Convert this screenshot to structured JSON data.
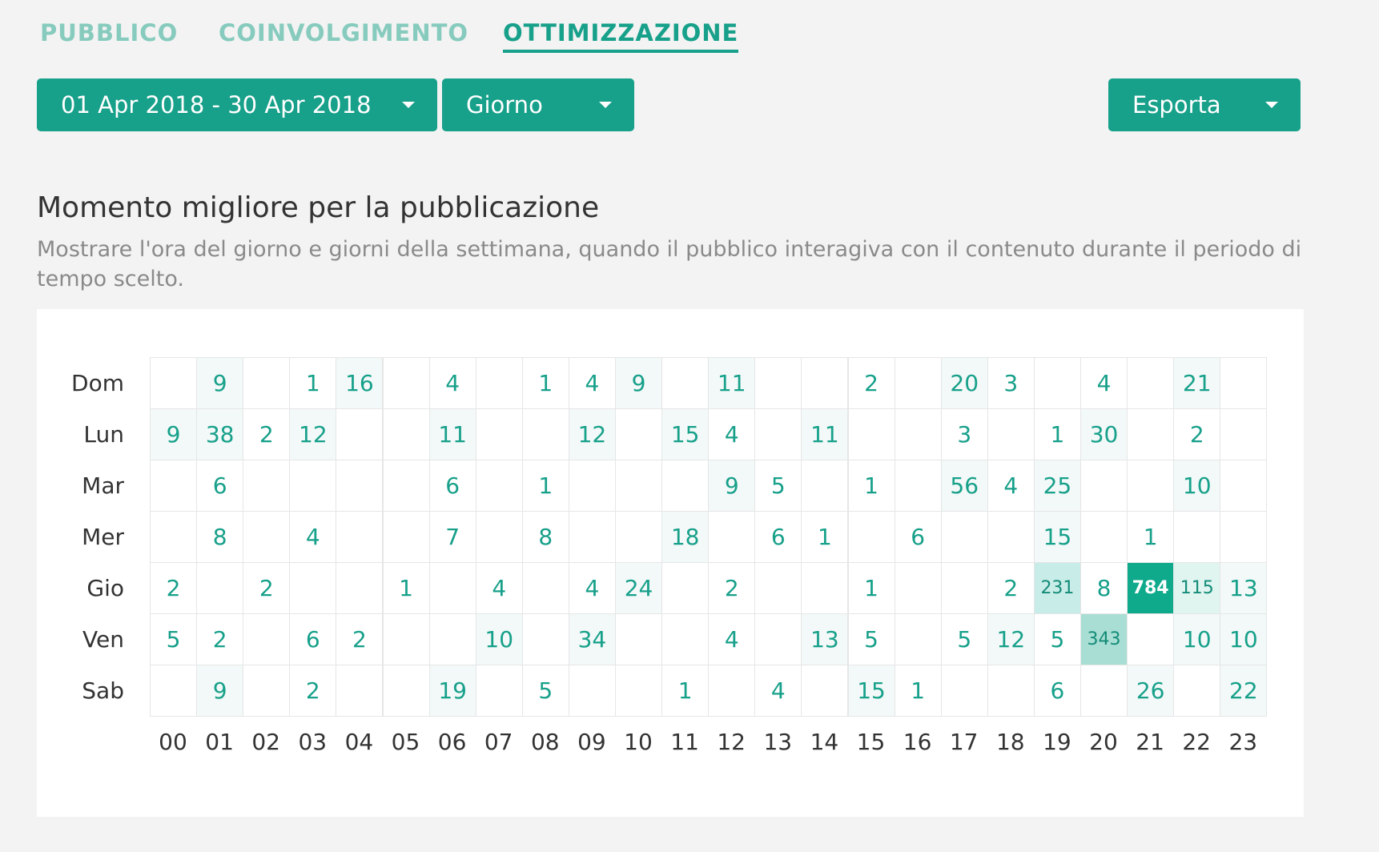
{
  "tabs": [
    {
      "label": "PUBBLICO",
      "active": false
    },
    {
      "label": "COINVOLGIMENTO",
      "active": false
    },
    {
      "label": "OTTIMIZZAZIONE",
      "active": true
    }
  ],
  "filters": {
    "date_range": "01 Apr 2018 - 30 Apr 2018",
    "granularity": "Giorno",
    "export_label": "Esporta"
  },
  "section": {
    "title": "Momento migliore per la pubblicazione",
    "description": "Mostrare l'ora del giorno e giorni della settimana, quando il pubblico interagiva con il contenuto durante il periodo di tempo scelto."
  },
  "colors": {
    "accent": "#17a08a",
    "accent_light": "#86cbbd",
    "heat_max": "#0faa8c",
    "heat_high": "#a8ded3",
    "heat_mid": "#c8ece8",
    "heat_low": "#e0f4f0",
    "heat_faint": "#f2f9f8"
  },
  "chart_data": {
    "type": "heatmap",
    "days": [
      "Dom",
      "Lun",
      "Mar",
      "Mer",
      "Gio",
      "Ven",
      "Sab"
    ],
    "hours": [
      "00",
      "01",
      "02",
      "03",
      "04",
      "05",
      "06",
      "07",
      "08",
      "09",
      "10",
      "11",
      "12",
      "13",
      "14",
      "15",
      "16",
      "17",
      "18",
      "19",
      "20",
      "21",
      "22",
      "23"
    ],
    "values": [
      [
        null,
        9,
        null,
        1,
        16,
        null,
        4,
        null,
        1,
        4,
        9,
        null,
        11,
        null,
        null,
        2,
        null,
        20,
        3,
        null,
        4,
        null,
        21,
        null
      ],
      [
        9,
        38,
        2,
        12,
        null,
        null,
        11,
        null,
        null,
        12,
        null,
        15,
        4,
        null,
        11,
        null,
        null,
        3,
        null,
        1,
        30,
        null,
        2,
        null
      ],
      [
        null,
        6,
        null,
        null,
        null,
        null,
        6,
        null,
        1,
        null,
        null,
        null,
        9,
        5,
        null,
        1,
        null,
        56,
        4,
        25,
        null,
        null,
        10,
        null
      ],
      [
        null,
        8,
        null,
        4,
        null,
        null,
        7,
        null,
        8,
        null,
        null,
        18,
        null,
        6,
        1,
        null,
        6,
        null,
        null,
        15,
        null,
        1,
        null,
        null
      ],
      [
        2,
        null,
        2,
        null,
        null,
        1,
        null,
        4,
        null,
        4,
        24,
        null,
        2,
        null,
        null,
        1,
        null,
        null,
        2,
        231,
        8,
        784,
        115,
        13
      ],
      [
        5,
        2,
        null,
        6,
        2,
        null,
        null,
        10,
        null,
        34,
        null,
        null,
        4,
        null,
        13,
        5,
        null,
        5,
        12,
        5,
        343,
        null,
        10,
        10
      ],
      [
        null,
        9,
        null,
        2,
        null,
        null,
        19,
        null,
        5,
        null,
        null,
        1,
        null,
        4,
        null,
        15,
        1,
        null,
        null,
        6,
        null,
        26,
        null,
        22
      ]
    ]
  }
}
